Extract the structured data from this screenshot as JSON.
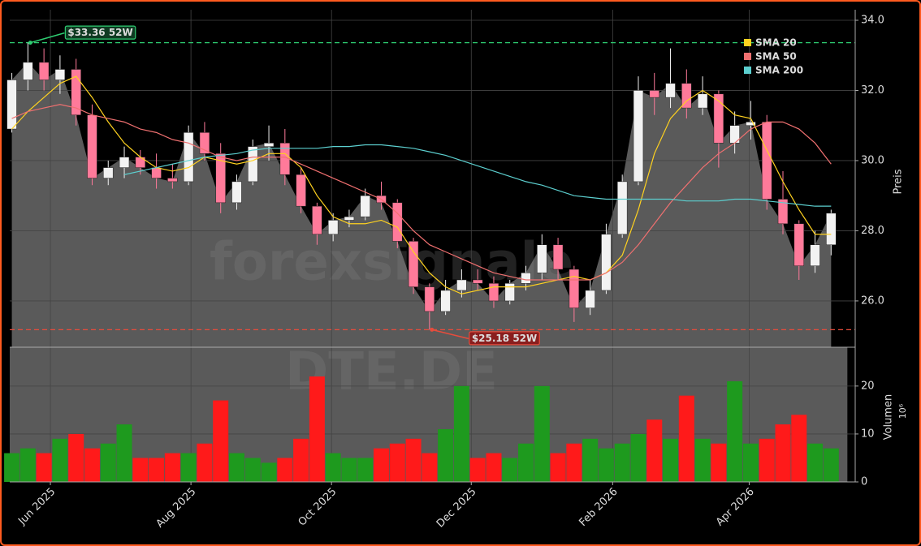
{
  "chart_data": {
    "type": "candlestick",
    "watermark": [
      "forexsignale",
      "DTE.DE"
    ],
    "xlim": [
      -0.13,
      52.5
    ],
    "xticks": [
      {
        "value": 2.4,
        "label": "Jun 2025"
      },
      {
        "value": 11.15,
        "label": "Aug 2025"
      },
      {
        "value": 19.9,
        "label": "Oct 2025"
      },
      {
        "value": 28.6,
        "label": "Dec 2025"
      },
      {
        "value": 37.4,
        "label": "Feb 2026"
      },
      {
        "value": 45.9,
        "label": "Apr 2026"
      }
    ],
    "ylim": [
      24.68,
      34.3
    ],
    "yticks": [
      {
        "value": 26,
        "label": "26.0"
      },
      {
        "value": 28,
        "label": "28.0"
      },
      {
        "value": 30,
        "label": "30.0"
      },
      {
        "value": 32,
        "label": "32.0"
      },
      {
        "value": 34,
        "label": "34.0"
      }
    ],
    "y_label": "Preis",
    "grid": true,
    "area_color": "#5a5a5a",
    "up_color": "#f2f2f2",
    "down_color": "#ff7a9a",
    "candles": {
      "open": [
        30.9,
        32.3,
        32.8,
        32.3,
        32.6,
        31.3,
        29.5,
        29.8,
        30.1,
        29.8,
        29.5,
        29.4,
        30.8,
        30.2,
        28.8,
        29.4,
        30.4,
        30.5,
        29.6,
        28.7,
        27.9,
        28.3,
        28.4,
        29.0,
        28.8,
        27.7,
        26.4,
        25.7,
        26.3,
        26.6,
        26.5,
        26.0,
        26.5,
        26.8,
        27.6,
        26.9,
        25.8,
        26.3,
        27.9,
        29.4,
        32.0,
        31.8,
        32.2,
        31.5,
        31.9,
        30.5,
        31.0,
        31.1,
        28.9,
        28.2,
        27.0,
        27.6
      ],
      "high": [
        32.5,
        33.36,
        33.2,
        33.0,
        32.9,
        31.6,
        30.0,
        30.4,
        30.3,
        30.2,
        29.9,
        31.0,
        31.1,
        30.5,
        29.6,
        30.6,
        31.0,
        30.9,
        29.8,
        28.8,
        28.5,
        28.6,
        29.2,
        29.4,
        28.9,
        27.8,
        26.5,
        26.6,
        26.9,
        26.9,
        26.7,
        26.6,
        27.0,
        27.9,
        27.8,
        27.0,
        26.6,
        28.2,
        29.6,
        32.4,
        32.5,
        33.2,
        32.6,
        32.4,
        32.0,
        31.4,
        31.7,
        31.3,
        29.7,
        28.3,
        28.0,
        28.6
      ],
      "low": [
        30.8,
        32.0,
        32.0,
        31.9,
        31.0,
        29.3,
        29.3,
        29.5,
        29.6,
        29.2,
        29.2,
        29.3,
        30.0,
        28.5,
        28.6,
        29.3,
        30.0,
        29.3,
        28.5,
        27.6,
        27.7,
        28.1,
        28.3,
        28.6,
        27.5,
        26.2,
        25.18,
        25.6,
        26.1,
        26.3,
        25.8,
        25.9,
        26.3,
        26.6,
        26.6,
        25.4,
        25.6,
        26.2,
        27.8,
        29.3,
        31.3,
        31.5,
        31.2,
        31.3,
        29.8,
        30.2,
        30.6,
        28.6,
        27.9,
        26.6,
        26.8,
        27.3
      ],
      "close": [
        32.3,
        32.8,
        32.3,
        32.6,
        31.3,
        29.5,
        29.8,
        30.1,
        29.8,
        29.5,
        29.4,
        30.8,
        30.2,
        28.8,
        29.4,
        30.4,
        30.5,
        29.6,
        28.7,
        27.9,
        28.3,
        28.4,
        29.0,
        28.8,
        27.7,
        26.4,
        25.7,
        26.3,
        26.6,
        26.5,
        26.0,
        26.5,
        26.8,
        27.6,
        26.9,
        25.8,
        26.3,
        27.9,
        29.4,
        32.0,
        31.8,
        32.2,
        31.5,
        31.9,
        30.5,
        31.0,
        31.1,
        28.9,
        28.2,
        27.0,
        27.6,
        28.5
      ]
    },
    "series": [
      {
        "name": "SMA 20",
        "color": "#ffd21f",
        "values": [
          30.9,
          31.4,
          31.8,
          32.2,
          32.4,
          31.8,
          31.1,
          30.5,
          30.1,
          29.8,
          29.7,
          29.8,
          30.1,
          30.0,
          29.9,
          30.0,
          30.2,
          30.2,
          29.8,
          29.0,
          28.4,
          28.2,
          28.2,
          28.3,
          28.1,
          27.4,
          26.8,
          26.4,
          26.2,
          26.3,
          26.4,
          26.4,
          26.4,
          26.5,
          26.6,
          26.7,
          26.6,
          26.8,
          27.3,
          28.6,
          30.2,
          31.2,
          31.7,
          32.0,
          31.7,
          31.3,
          31.2,
          30.3,
          29.4,
          28.6,
          27.9,
          27.9
        ]
      },
      {
        "name": "SMA 50",
        "color": "#f07070",
        "values": [
          31.2,
          31.4,
          31.5,
          31.6,
          31.5,
          31.3,
          31.2,
          31.1,
          30.9,
          30.8,
          30.6,
          30.5,
          30.3,
          30.1,
          30.0,
          30.1,
          30.1,
          30.1,
          29.9,
          29.7,
          29.5,
          29.3,
          29.1,
          28.9,
          28.5,
          28.0,
          27.6,
          27.4,
          27.2,
          27.0,
          26.8,
          26.7,
          26.6,
          26.6,
          26.6,
          26.6,
          26.6,
          26.8,
          27.1,
          27.6,
          28.2,
          28.8,
          29.3,
          29.8,
          30.2,
          30.5,
          30.9,
          31.1,
          31.1,
          30.9,
          30.5,
          29.9
        ]
      },
      {
        "name": "SMA 200",
        "color": "#5ccfcf",
        "values": [
          null,
          null,
          null,
          null,
          null,
          null,
          null,
          29.6,
          29.7,
          29.8,
          29.9,
          30.0,
          30.1,
          30.15,
          30.2,
          30.3,
          30.35,
          30.35,
          30.35,
          30.35,
          30.4,
          30.4,
          30.45,
          30.45,
          30.4,
          30.35,
          30.25,
          30.15,
          30.0,
          29.85,
          29.7,
          29.55,
          29.4,
          29.3,
          29.15,
          29.0,
          28.95,
          28.9,
          28.9,
          28.9,
          28.9,
          28.9,
          28.85,
          28.85,
          28.85,
          28.9,
          28.9,
          28.85,
          28.8,
          28.75,
          28.7,
          28.7
        ]
      }
    ],
    "legend": "upper right",
    "reference_lines": [
      {
        "value": 33.36,
        "label": "$33.36 52W",
        "color": "#2ecc71",
        "at_index": 1
      },
      {
        "value": 25.18,
        "label": "$25.18 52W",
        "color": "#e74c3c",
        "at_index": 26
      }
    ],
    "volume": {
      "label": "Volumen",
      "scale_label": "10⁶",
      "ylim": [
        0,
        28.1
      ],
      "yticks": [
        0,
        10,
        20
      ],
      "up_color": "#1e9a1e",
      "down_color": "#ff1a1a",
      "values": [
        6,
        7,
        6,
        9,
        10,
        7,
        8,
        12,
        5,
        5,
        6,
        6,
        8,
        17,
        6,
        5,
        4,
        5,
        9,
        22,
        6,
        5,
        5,
        7,
        8,
        9,
        6,
        11,
        20,
        5,
        6,
        5,
        8,
        20,
        6,
        8,
        9,
        7,
        8,
        10,
        13,
        9,
        18,
        9,
        8,
        21,
        8,
        9,
        12,
        14,
        8,
        7
      ]
    }
  }
}
